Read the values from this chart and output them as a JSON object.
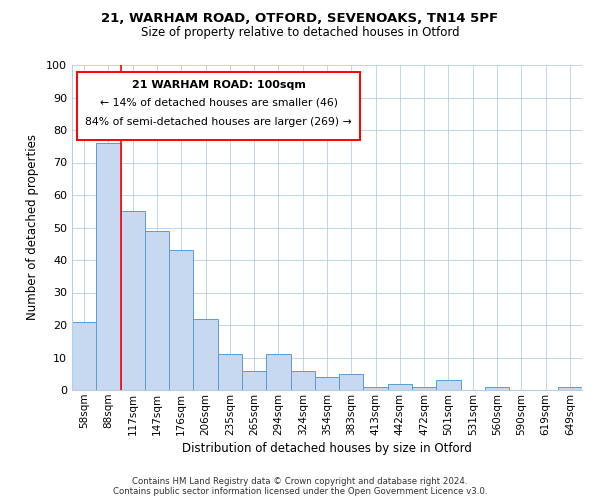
{
  "title_line1": "21, WARHAM ROAD, OTFORD, SEVENOAKS, TN14 5PF",
  "title_line2": "Size of property relative to detached houses in Otford",
  "xlabel": "Distribution of detached houses by size in Otford",
  "ylabel": "Number of detached properties",
  "bar_labels": [
    "58sqm",
    "88sqm",
    "117sqm",
    "147sqm",
    "176sqm",
    "206sqm",
    "235sqm",
    "265sqm",
    "294sqm",
    "324sqm",
    "354sqm",
    "383sqm",
    "413sqm",
    "442sqm",
    "472sqm",
    "501sqm",
    "531sqm",
    "560sqm",
    "590sqm",
    "619sqm",
    "649sqm"
  ],
  "bar_values": [
    21,
    76,
    55,
    49,
    43,
    22,
    11,
    6,
    11,
    6,
    4,
    5,
    1,
    2,
    1,
    3,
    0,
    1,
    0,
    0,
    1
  ],
  "bar_color": "#c6d9f0",
  "bar_edge_color": "#5b9bd5",
  "ylim": [
    0,
    100
  ],
  "yticks": [
    0,
    10,
    20,
    30,
    40,
    50,
    60,
    70,
    80,
    90,
    100
  ],
  "annotation_text_line1": "21 WARHAM ROAD: 100sqm",
  "annotation_text_line2": "← 14% of detached houses are smaller (46)",
  "annotation_text_line3": "84% of semi-detached houses are larger (269) →",
  "red_line_x": 1.5,
  "background_color": "#ffffff",
  "footer_line1": "Contains HM Land Registry data © Crown copyright and database right 2024.",
  "footer_line2": "Contains public sector information licensed under the Open Government Licence v3.0."
}
